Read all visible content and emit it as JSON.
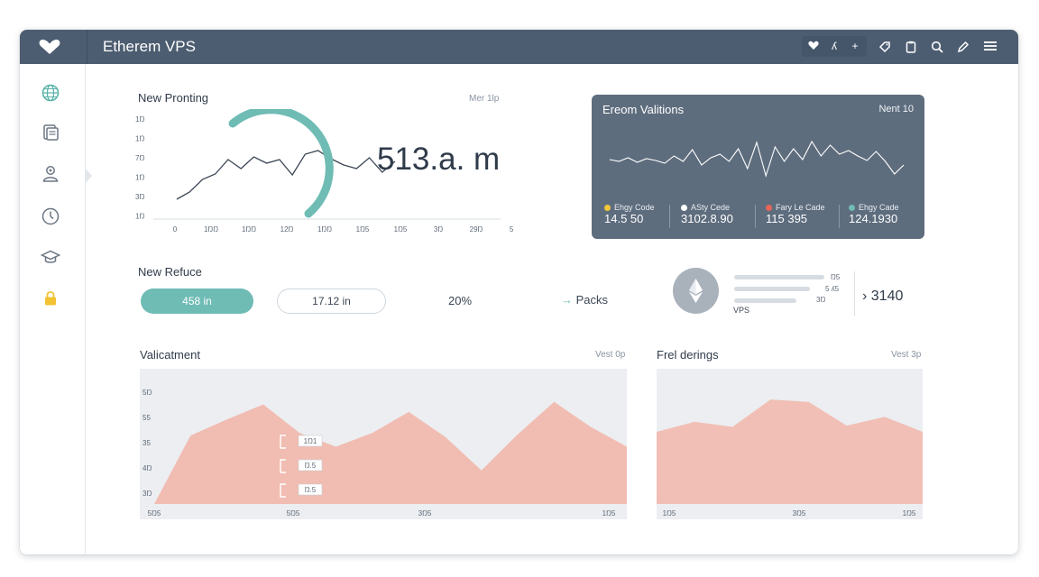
{
  "app": {
    "title": "Etherem VPS"
  },
  "toolbar": {
    "icons": [
      "heart-icon",
      "chart-icon",
      "plus-icon",
      "tag-icon",
      "clipboard-icon",
      "search-icon",
      "edit-icon",
      "menu-icon"
    ],
    "chart_glyph": "ʎ",
    "plus_glyph": "+"
  },
  "sidebar": {
    "items": [
      "globe-icon",
      "document-icon",
      "user-icon",
      "clock-icon",
      "cap-icon",
      "lock-icon"
    ]
  },
  "accent": {
    "teal": "#6fbcb5",
    "header": "#4d5d71",
    "area": "#f2b3a7",
    "dark_card": "#5e6d7e"
  },
  "chart_data": [
    {
      "type": "line",
      "title": "New Pronting",
      "meta": "Mer 1lp",
      "yticks": [
        "1Ŋ",
        "1Ŋ",
        "7Ŋ",
        "1Ŋ",
        "3Ŋ",
        "1Ŋ"
      ],
      "xticks": [
        "0",
        "1ŊŊ",
        "1ŊŊ",
        "12Ŋ",
        "1ŊŊ",
        "1Ŋ5",
        "1Ŋ5",
        "3Ŋ",
        "29Ŋ",
        "5Ŋ"
      ],
      "ylim": [
        0,
        100
      ],
      "x": [
        0,
        1,
        2,
        3,
        4,
        5,
        6,
        7,
        8,
        9,
        10,
        11,
        12,
        13,
        14,
        15,
        16,
        17
      ],
      "values": [
        18,
        26,
        40,
        46,
        62,
        52,
        65,
        58,
        62,
        45,
        68,
        72,
        63,
        56,
        52,
        64,
        48,
        60
      ],
      "gauge_value": "513.a. m"
    },
    {
      "type": "line",
      "title": "Ereom Valitions",
      "meta": "Nent 10",
      "values": [
        46,
        44,
        48,
        43,
        47,
        45,
        42,
        50,
        44,
        57,
        40,
        48,
        52,
        44,
        58,
        36,
        65,
        28,
        60,
        44,
        58,
        46,
        66,
        50,
        62,
        52,
        56,
        50,
        45,
        55,
        44,
        30,
        40
      ]
    },
    {
      "type": "area",
      "title": "Valicatment",
      "meta": "Vest 0p",
      "yticks": [
        "5Ŋ",
        "55",
        "35",
        "4Ŋ",
        "3Ŋ"
      ],
      "xticks": [
        "5Ŋ5",
        "5Ŋ5",
        "3Ŋ5",
        "1Ŋ5"
      ],
      "values": [
        0,
        55,
        68,
        80,
        57,
        46,
        57,
        74,
        54,
        27,
        56,
        82,
        62,
        46
      ],
      "ylim": [
        0,
        100
      ],
      "callouts": [
        "1Ŋ1",
        "Ŋ.5",
        "Ŋ.5"
      ]
    },
    {
      "type": "area",
      "title": "Frel derings",
      "meta": "Vest 3p",
      "xticks": [
        "1Ŋ5",
        "3Ŋ5",
        "1Ŋ5"
      ],
      "values": [
        58,
        66,
        62,
        84,
        82,
        63,
        70,
        58
      ],
      "ylim": [
        0,
        100
      ]
    }
  ],
  "dark_card": {
    "metrics": [
      {
        "label": "Ehgy Code",
        "value": "14.5 50",
        "color": "#f3c73a"
      },
      {
        "label": "ASty Cede",
        "value": "3102.8.90",
        "color": "#ffffff"
      },
      {
        "label": "Fary Le Cade",
        "value": "115 395",
        "color": "#e8645a"
      },
      {
        "label": "Ehgy Cade",
        "value": "124.1930",
        "color": "#6fbcb5"
      }
    ]
  },
  "refuce": {
    "title": "New Refuce",
    "pill_primary": "458 in",
    "pill_secondary": "17.12 in",
    "percent": "20%",
    "link_arrow": "→",
    "link_label": "Packs"
  },
  "vps": {
    "label": "VPS",
    "bars": [
      {
        "fraction": 0.98,
        "value": "Ŋ5"
      },
      {
        "fraction": 0.82,
        "value": "5 ʎ5"
      },
      {
        "fraction": 0.68,
        "value": "3Ŋ"
      }
    ],
    "big_value": "› 3140"
  }
}
